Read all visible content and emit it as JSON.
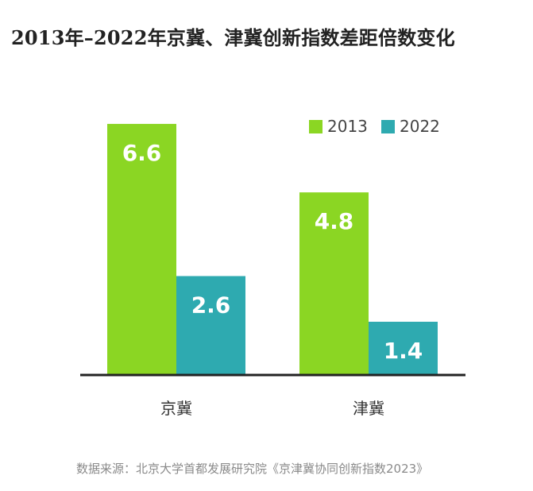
{
  "title": "2013年–2022年京冀、津冀创新指数差距倍数变化",
  "source": "数据来源：北京大学首都发展研究院《京津冀协同创新指数2023》",
  "chart_data": {
    "type": "bar",
    "categories": [
      "京冀",
      "津冀"
    ],
    "series": [
      {
        "name": "2013",
        "values": [
          6.6,
          4.8
        ],
        "color": "#8bd623"
      },
      {
        "name": "2022",
        "values": [
          2.6,
          1.4
        ],
        "color": "#2eaab0"
      }
    ],
    "ylim": [
      0,
      7.1
    ],
    "legend_position": "top-right",
    "grid": false,
    "data_labels": true
  }
}
